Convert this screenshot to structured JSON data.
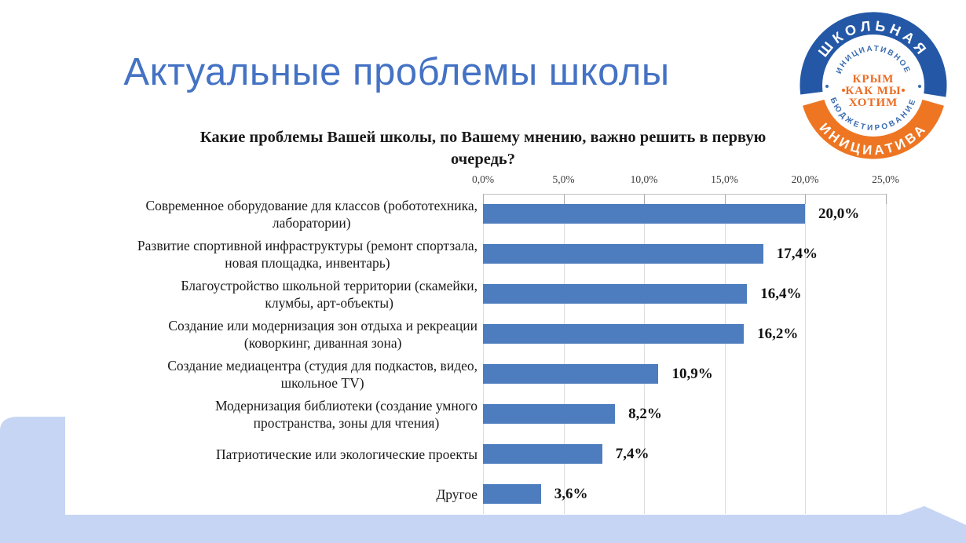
{
  "slide": {
    "title": "Актуальные проблемы школы",
    "title_color": "#4472c4",
    "background_color": "#ffffff",
    "decor_color": "#c6d5f4"
  },
  "logo": {
    "ring_top_text": "ШКОЛЬНАЯ",
    "ring_bottom_text": "ИНИЦИАТИВА",
    "inner_top_text": "ИНИЦИАТИВНОЕ",
    "inner_bottom_text": "БЮДЖЕТИРОВАНИЕ",
    "center_lines": [
      "КРЫМ",
      "КАК МЫ",
      "ХОТИМ"
    ],
    "blue": "#2458a6",
    "orange": "#ee7623"
  },
  "chart_data": {
    "type": "bar",
    "orientation": "horizontal",
    "title": "Какие проблемы Вашей школы, по Вашему мнению, важно решить в первую\nочередь?",
    "categories": [
      "Современное оборудование для классов (робототехника,\nлаборатории)",
      "Развитие спортивной инфраструктуры (ремонт спортзала,\nновая площадка, инвентарь)",
      "Благоустройство школьной территории (скамейки,\nклумбы, арт-объекты)",
      "Создание или модернизация зон отдыха и рекреации\n(коворкинг, диванная зона)",
      "Создание медиацентра (студия для подкастов, видео,\nшкольное TV)",
      "Модернизация библиотеки (создание умного\nпространства, зоны для чтения)",
      "Патриотические или экологические проекты",
      "Другое"
    ],
    "values": [
      20.0,
      17.4,
      16.4,
      16.2,
      10.9,
      8.2,
      7.4,
      3.6
    ],
    "value_labels": [
      "20,0%",
      "17,4%",
      "16,4%",
      "16,2%",
      "10,9%",
      "8,2%",
      "7,4%",
      "3,6%"
    ],
    "x_ticks": [
      "0,0%",
      "5,0%",
      "10,0%",
      "15,0%",
      "20,0%",
      "25,0%"
    ],
    "xlim": [
      0,
      25
    ],
    "axis_position": "top",
    "grid": true,
    "legend": false,
    "bar_color": "#4e7dbf",
    "gridline_color": "#dcdcdc",
    "axis_line_color": "#bfbfbf"
  }
}
